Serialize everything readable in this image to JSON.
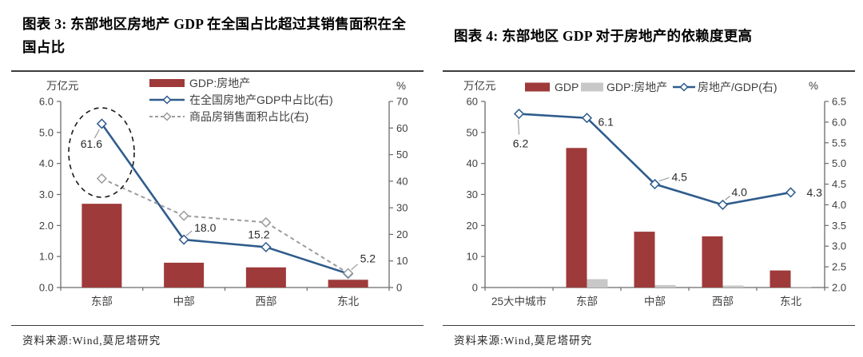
{
  "panels": [
    {
      "title": "图表 3: 东部地区房地产 GDP 在全国占比超过其销售面积在全国占比",
      "source": "资料来源:Wind,莫尼塔研究"
    },
    {
      "title": "图表 4: 东部地区 GDP 对于房地产的依赖度更高",
      "source": "资料来源:Wind,莫尼塔研究"
    }
  ],
  "colors": {
    "bar_red": "#9E3A3A",
    "bar_gray": "#C8C8C8",
    "line_blue": "#2F5C8C",
    "line_gray": "#9C9C9C",
    "axis": "#6b6b6b",
    "annotation": "#1a1a1a"
  },
  "chart_data": [
    {
      "type": "bar+line",
      "title": "图表 3: 东部地区房地产 GDP 在全国占比超过其销售面积在全国占比",
      "categories": [
        "东部",
        "中部",
        "西部",
        "东北"
      ],
      "left_axis": {
        "label": "万亿元",
        "min": 0,
        "max": 6,
        "ticks": [
          "0.0",
          "1.0",
          "2.0",
          "3.0",
          "4.0",
          "5.0",
          "6.0"
        ]
      },
      "right_axis": {
        "label": "%",
        "min": 0,
        "max": 70,
        "ticks": [
          "0",
          "10",
          "20",
          "30",
          "40",
          "50",
          "60",
          "70"
        ]
      },
      "bar_series": [
        {
          "name": "GDP:房地产",
          "color": "#9E3A3A",
          "axis": "left",
          "values": [
            2.7,
            0.8,
            0.65,
            0.25
          ]
        }
      ],
      "line_series": [
        {
          "name": "在全国房地产GDP中占比(右)",
          "color": "#2F5C8C",
          "dashed": false,
          "axis": "right",
          "values": [
            61.6,
            18.0,
            15.2,
            5.2
          ],
          "point_labels": [
            "61.6",
            "18.0",
            "15.2",
            "5.2"
          ]
        },
        {
          "name": "商品房销售面积占比(右)",
          "color": "#9C9C9C",
          "dashed": true,
          "axis": "right",
          "values": [
            41,
            27,
            24.5,
            5.4
          ],
          "point_labels": null
        }
      ],
      "legend_position": "top-vertical",
      "grid": false,
      "annotations": [
        {
          "type": "dashed-ellipse",
          "note": "circles the two 东部 line points"
        }
      ]
    },
    {
      "type": "bar+line",
      "title": "图表 4: 东部地区 GDP 对于房地产的依赖度更高",
      "categories": [
        "25大中城市",
        "东部",
        "中部",
        "西部",
        "东北"
      ],
      "left_axis": {
        "label": "万亿元",
        "min": 0,
        "max": 60,
        "ticks": [
          "0",
          "10",
          "20",
          "30",
          "40",
          "50",
          "60"
        ]
      },
      "right_axis": {
        "label": "%",
        "min": 2,
        "max": 6.5,
        "ticks": [
          "2.0",
          "2.5",
          "3.0",
          "3.5",
          "4.0",
          "4.5",
          "5.0",
          "5.5",
          "6.0",
          "6.5"
        ]
      },
      "bar_series": [
        {
          "name": "GDP",
          "color": "#9E3A3A",
          "axis": "left",
          "values": [
            null,
            45,
            18,
            16.5,
            5.5
          ]
        },
        {
          "name": "GDP:房地产",
          "color": "#C8C8C8",
          "axis": "left",
          "values": [
            null,
            2.7,
            0.8,
            0.65,
            0.25
          ]
        }
      ],
      "line_series": [
        {
          "name": "房地产/GDP(右)",
          "color": "#2F5C8C",
          "dashed": false,
          "axis": "right",
          "values": [
            6.2,
            6.1,
            4.5,
            4.0,
            4.3
          ],
          "point_labels": [
            "6.2",
            "6.1",
            "4.5",
            "4.0",
            "4.3"
          ]
        }
      ],
      "legend_position": "top-horizontal",
      "grid": false,
      "annotations": []
    }
  ]
}
